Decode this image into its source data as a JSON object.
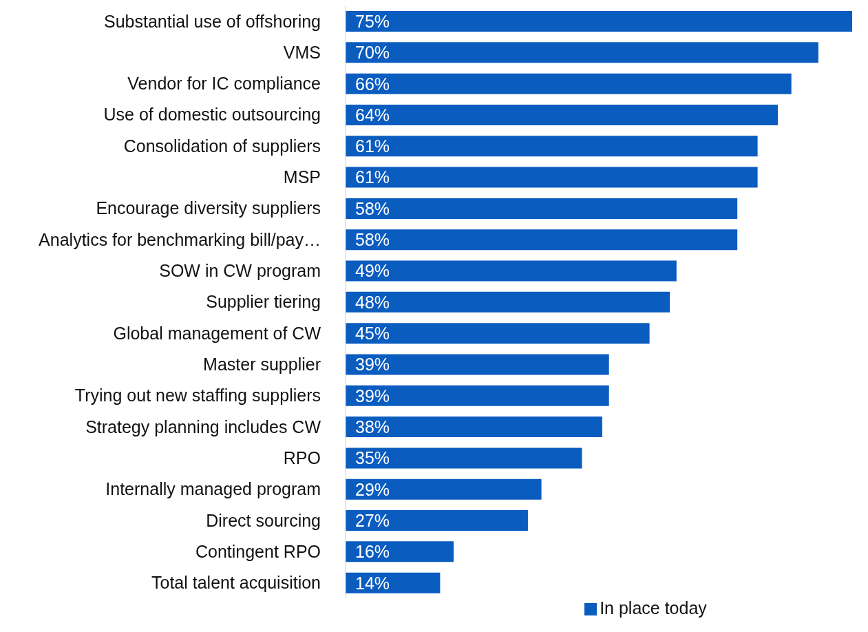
{
  "chart_data": {
    "type": "bar",
    "orientation": "horizontal",
    "categories": [
      "Substantial use of offshoring",
      "VMS",
      "Vendor for IC compliance",
      "Use of domestic outsourcing",
      "Consolidation of suppliers",
      "MSP",
      "Encourage diversity suppliers",
      "Analytics for benchmarking bill/pay…",
      "SOW in CW program",
      "Supplier tiering",
      "Global management of CW",
      "Master supplier",
      "Trying out new staffing suppliers",
      "Strategy planning includes CW",
      "RPO",
      "Internally managed program",
      "Direct sourcing",
      "Contingent RPO",
      "Total talent acquisition"
    ],
    "series": [
      {
        "name": "In place today",
        "color": "#0b5cbf",
        "values": [
          75,
          70,
          66,
          64,
          61,
          61,
          58,
          58,
          49,
          48,
          45,
          39,
          39,
          38,
          35,
          29,
          27,
          16,
          14
        ],
        "value_labels": [
          "75%",
          "70%",
          "66%",
          "64%",
          "61%",
          "61%",
          "58%",
          "58%",
          "49%",
          "48%",
          "45%",
          "39%",
          "39%",
          "38%",
          "35%",
          "29%",
          "27%",
          "16%",
          "14%"
        ]
      }
    ],
    "legend": "bottom",
    "grid": false
  }
}
